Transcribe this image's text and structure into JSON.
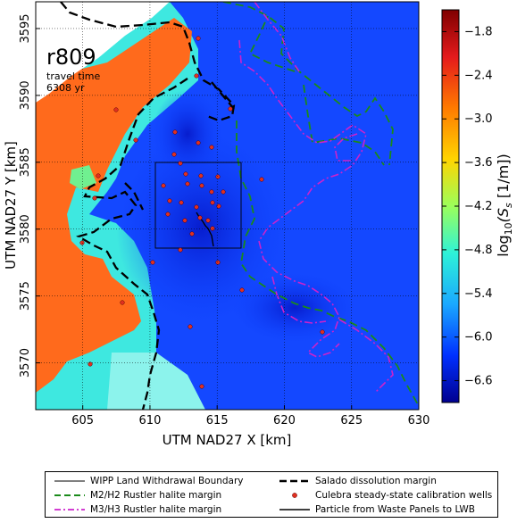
{
  "map": {
    "realization": "r809",
    "travel_time_label": "travel time",
    "travel_time_value": "6308 yr",
    "xlabel": "UTM NAD27 X [km]",
    "ylabel": "UTM NAD27 Y [km]",
    "x_ticks": [
      "605",
      "610",
      "615",
      "620",
      "625",
      "630"
    ],
    "y_ticks": [
      "3570",
      "3575",
      "3580",
      "3585",
      "3590",
      "3595"
    ],
    "xlim": [
      601.5,
      630
    ],
    "ylim": [
      3566.5,
      3597
    ]
  },
  "colorbar": {
    "label_prefix": "log",
    "label_sub": "10",
    "label_body": "(S",
    "label_sub2": "s",
    "label_tail": " [1/m])",
    "ticks": [
      "−1.8",
      "−2.4",
      "−3.0",
      "−3.6",
      "−4.2",
      "−4.8",
      "−5.4",
      "−6.0",
      "−6.6"
    ],
    "tick_values": [
      -1.8,
      -2.4,
      -3.0,
      -3.6,
      -4.2,
      -4.8,
      -5.4,
      -6.0,
      -6.6
    ],
    "range": [
      -1.5,
      -6.9
    ]
  },
  "legend": {
    "items": [
      {
        "label": "WIPP Land Withdrawal Boundary",
        "style": "thin-solid",
        "color": "#000000"
      },
      {
        "label": "Salado dissolution margin",
        "style": "thick-dash",
        "color": "#000000"
      },
      {
        "label": "M2/H2 Rustler halite margin",
        "style": "green-dash",
        "color": "#1a8a1a"
      },
      {
        "label": "Culebra steady-state calibration wells",
        "style": "dot",
        "color": "#e03020"
      },
      {
        "label": "M3/H3 Rustler halite margin",
        "style": "magenta-dashdot",
        "color": "#cc22cc"
      },
      {
        "label": "Particle from Waste Panels to LWB",
        "style": "solid",
        "color": "#000000"
      }
    ]
  },
  "colors": {
    "orange": "#ff6a1c",
    "cyan": "#3ee8e0",
    "light_cyan": "#7af0e8",
    "blue": "#0d40ff",
    "dark_blue": "#0a28e0",
    "well": "#e03020"
  }
}
